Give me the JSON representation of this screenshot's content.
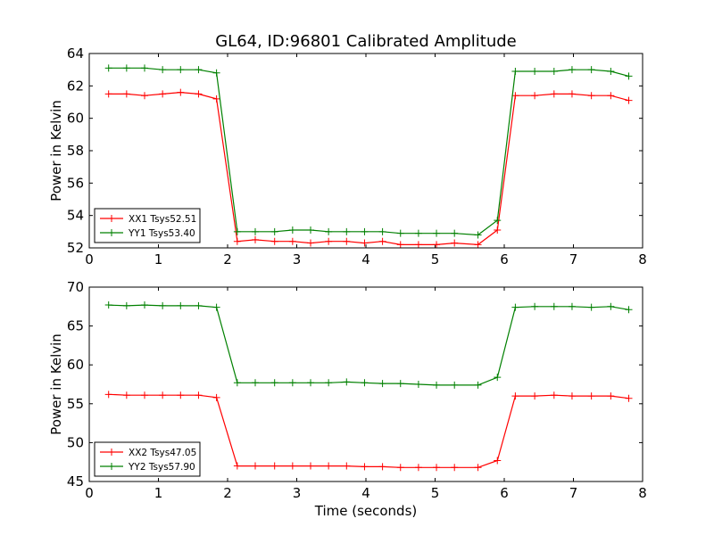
{
  "chart_data": {
    "title": "GL64, ID:96801 Calibrated Amplitude",
    "type": "line",
    "x": [
      0.28,
      0.54,
      0.8,
      1.06,
      1.32,
      1.58,
      1.84,
      2.14,
      2.4,
      2.68,
      2.94,
      3.2,
      3.46,
      3.72,
      3.98,
      4.24,
      4.5,
      4.76,
      5.02,
      5.28,
      5.62,
      5.9,
      6.16,
      6.44,
      6.72,
      6.98,
      7.26,
      7.54,
      7.8
    ],
    "xlabel": "Time (seconds)",
    "subplots": [
      {
        "ylabel": "Power in Kelvin",
        "ylim": [
          52,
          64
        ],
        "xlim": [
          0,
          8
        ],
        "yticks": [
          52,
          54,
          56,
          58,
          60,
          62,
          64
        ],
        "xticks": [
          0,
          1,
          2,
          3,
          4,
          5,
          6,
          7,
          8
        ],
        "legend_position": "lower-left",
        "series": [
          {
            "name": "XX1 Tsys52.51",
            "color": "#ff0000",
            "values": [
              61.5,
              61.5,
              61.4,
              61.5,
              61.6,
              61.5,
              61.2,
              52.4,
              52.5,
              52.4,
              52.4,
              52.3,
              52.4,
              52.4,
              52.3,
              52.4,
              52.2,
              52.2,
              52.2,
              52.3,
              52.2,
              53.1,
              61.4,
              61.4,
              61.5,
              61.5,
              61.4,
              61.4,
              61.1
            ]
          },
          {
            "name": "YY1 Tsys53.40",
            "color": "#008000",
            "values": [
              63.1,
              63.1,
              63.1,
              63.0,
              63.0,
              63.0,
              62.8,
              53.0,
              53.0,
              53.0,
              53.1,
              53.1,
              53.0,
              53.0,
              53.0,
              53.0,
              52.9,
              52.9,
              52.9,
              52.9,
              52.8,
              53.7,
              62.9,
              62.9,
              62.9,
              63.0,
              63.0,
              62.9,
              62.6
            ]
          }
        ]
      },
      {
        "ylabel": "Power in Kelvin",
        "ylim": [
          45,
          70
        ],
        "xlim": [
          0,
          8
        ],
        "yticks": [
          45,
          50,
          55,
          60,
          65,
          70
        ],
        "xticks": [
          0,
          1,
          2,
          3,
          4,
          5,
          6,
          7,
          8
        ],
        "legend_position": "lower-left",
        "series": [
          {
            "name": "XX2 Tsys47.05",
            "color": "#ff0000",
            "values": [
              56.2,
              56.1,
              56.1,
              56.1,
              56.1,
              56.1,
              55.8,
              47.0,
              47.0,
              47.0,
              47.0,
              47.0,
              47.0,
              47.0,
              46.9,
              46.9,
              46.8,
              46.8,
              46.8,
              46.8,
              46.8,
              47.7,
              56.0,
              56.0,
              56.1,
              56.0,
              56.0,
              56.0,
              55.7
            ]
          },
          {
            "name": "YY2 Tsys57.90",
            "color": "#008000",
            "values": [
              67.7,
              67.6,
              67.7,
              67.6,
              67.6,
              67.6,
              67.4,
              57.7,
              57.7,
              57.7,
              57.7,
              57.7,
              57.7,
              57.8,
              57.7,
              57.6,
              57.6,
              57.5,
              57.4,
              57.4,
              57.4,
              58.4,
              67.4,
              67.5,
              67.5,
              67.5,
              67.4,
              67.5,
              67.1
            ]
          }
        ]
      }
    ]
  }
}
